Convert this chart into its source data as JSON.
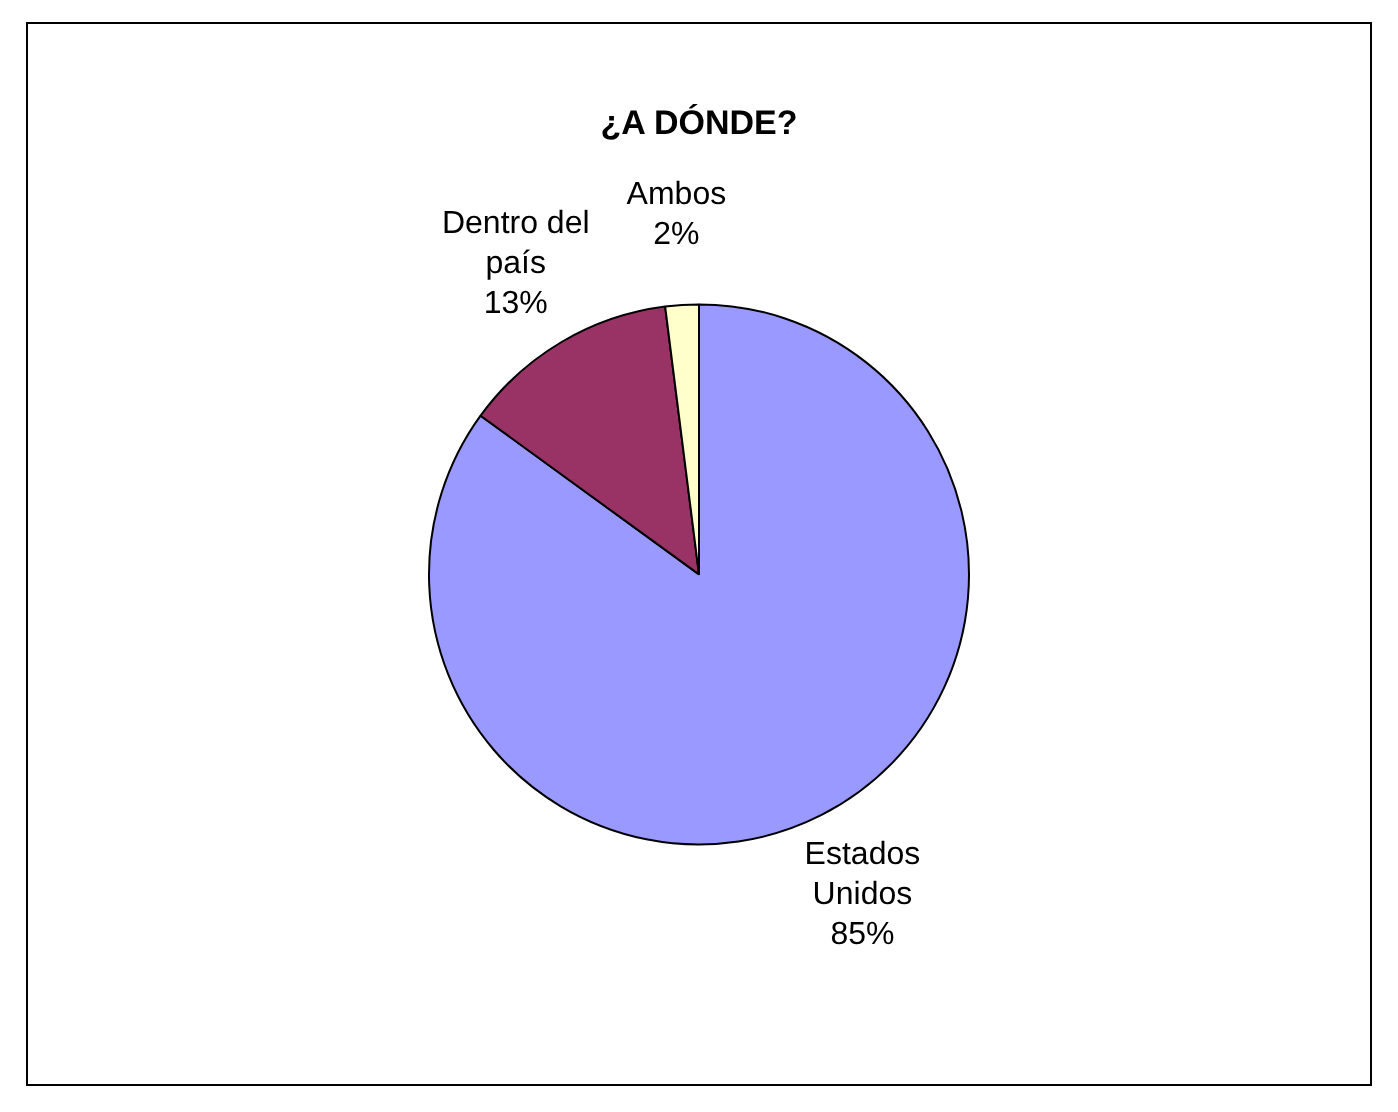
{
  "chart_data": {
    "type": "pie",
    "title": "¿A DÓNDE?",
    "categories": [
      "Estados Unidos",
      "Dentro del país",
      "Ambos"
    ],
    "values": [
      85,
      13,
      2
    ],
    "colors": [
      "#9999ff",
      "#993366",
      "#ffffcc"
    ],
    "value_labels": [
      "85%",
      "13%",
      "2%"
    ],
    "legend": false
  }
}
